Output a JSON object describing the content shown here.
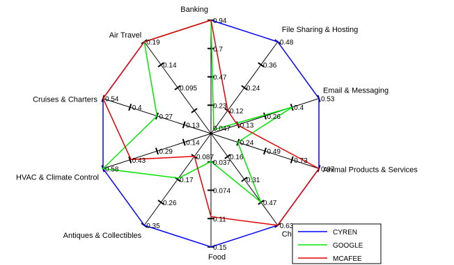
{
  "chart_data": {
    "type": "radar",
    "axes": [
      {
        "name": "Banking",
        "ticks": [
          "0.94",
          "0.7",
          "0.47",
          "0.23",
          "0.047"
        ]
      },
      {
        "name": "File Sharing & Hosting",
        "ticks": [
          "0.48",
          "0.36",
          "0.24",
          "0.12"
        ]
      },
      {
        "name": "Email & Messaging",
        "ticks": [
          "0.53",
          "0.4",
          "0.26",
          "0.13"
        ]
      },
      {
        "name": "Animal Products & Services",
        "ticks": [
          "0.97",
          "0.73",
          "0.49",
          "0.24"
        ]
      },
      {
        "name": "Chemistry",
        "ticks": [
          "0.63",
          "0.47",
          "0.31",
          "0.16"
        ]
      },
      {
        "name": "Food",
        "ticks": [
          "0.15",
          "0.11",
          "0.074",
          "0.037"
        ]
      },
      {
        "name": "Antiques & Collectibles",
        "ticks": [
          "0.35",
          "0.26",
          "0.17",
          "0.087"
        ]
      },
      {
        "name": "HVAC & Climate Control",
        "ticks": [
          "0.58",
          "0.43",
          "0.29",
          "0.14"
        ]
      },
      {
        "name": "Cruises & Charters",
        "ticks": [
          "0.54",
          "0.4",
          "0.27",
          "0.13"
        ]
      },
      {
        "name": "Air Travel",
        "ticks": [
          "0.19",
          "0.14",
          "0.095"
        ]
      }
    ],
    "axis_max": [
      0.94,
      0.48,
      0.53,
      0.97,
      0.63,
      0.15,
      0.35,
      0.58,
      0.54,
      0.19
    ],
    "series": [
      {
        "name": "CYREN",
        "color": "#0000ff",
        "values": [
          0.94,
          0.48,
          0.53,
          0.97,
          0.63,
          0.15,
          0.35,
          0.58,
          0.54,
          0.19
        ]
      },
      {
        "name": "GOOGLE",
        "color": "#00e600",
        "values": [
          0.94,
          0.02,
          0.4,
          0.24,
          0.47,
          0.037,
          0.17,
          0.58,
          0.27,
          0.19
        ]
      },
      {
        "name": "MCAFEE",
        "color": "#e60000",
        "values": [
          0.94,
          0.12,
          0.13,
          0.97,
          0.63,
          0.11,
          0.087,
          0.43,
          0.54,
          0.19
        ]
      }
    ],
    "legend_position": "bottom-right"
  }
}
